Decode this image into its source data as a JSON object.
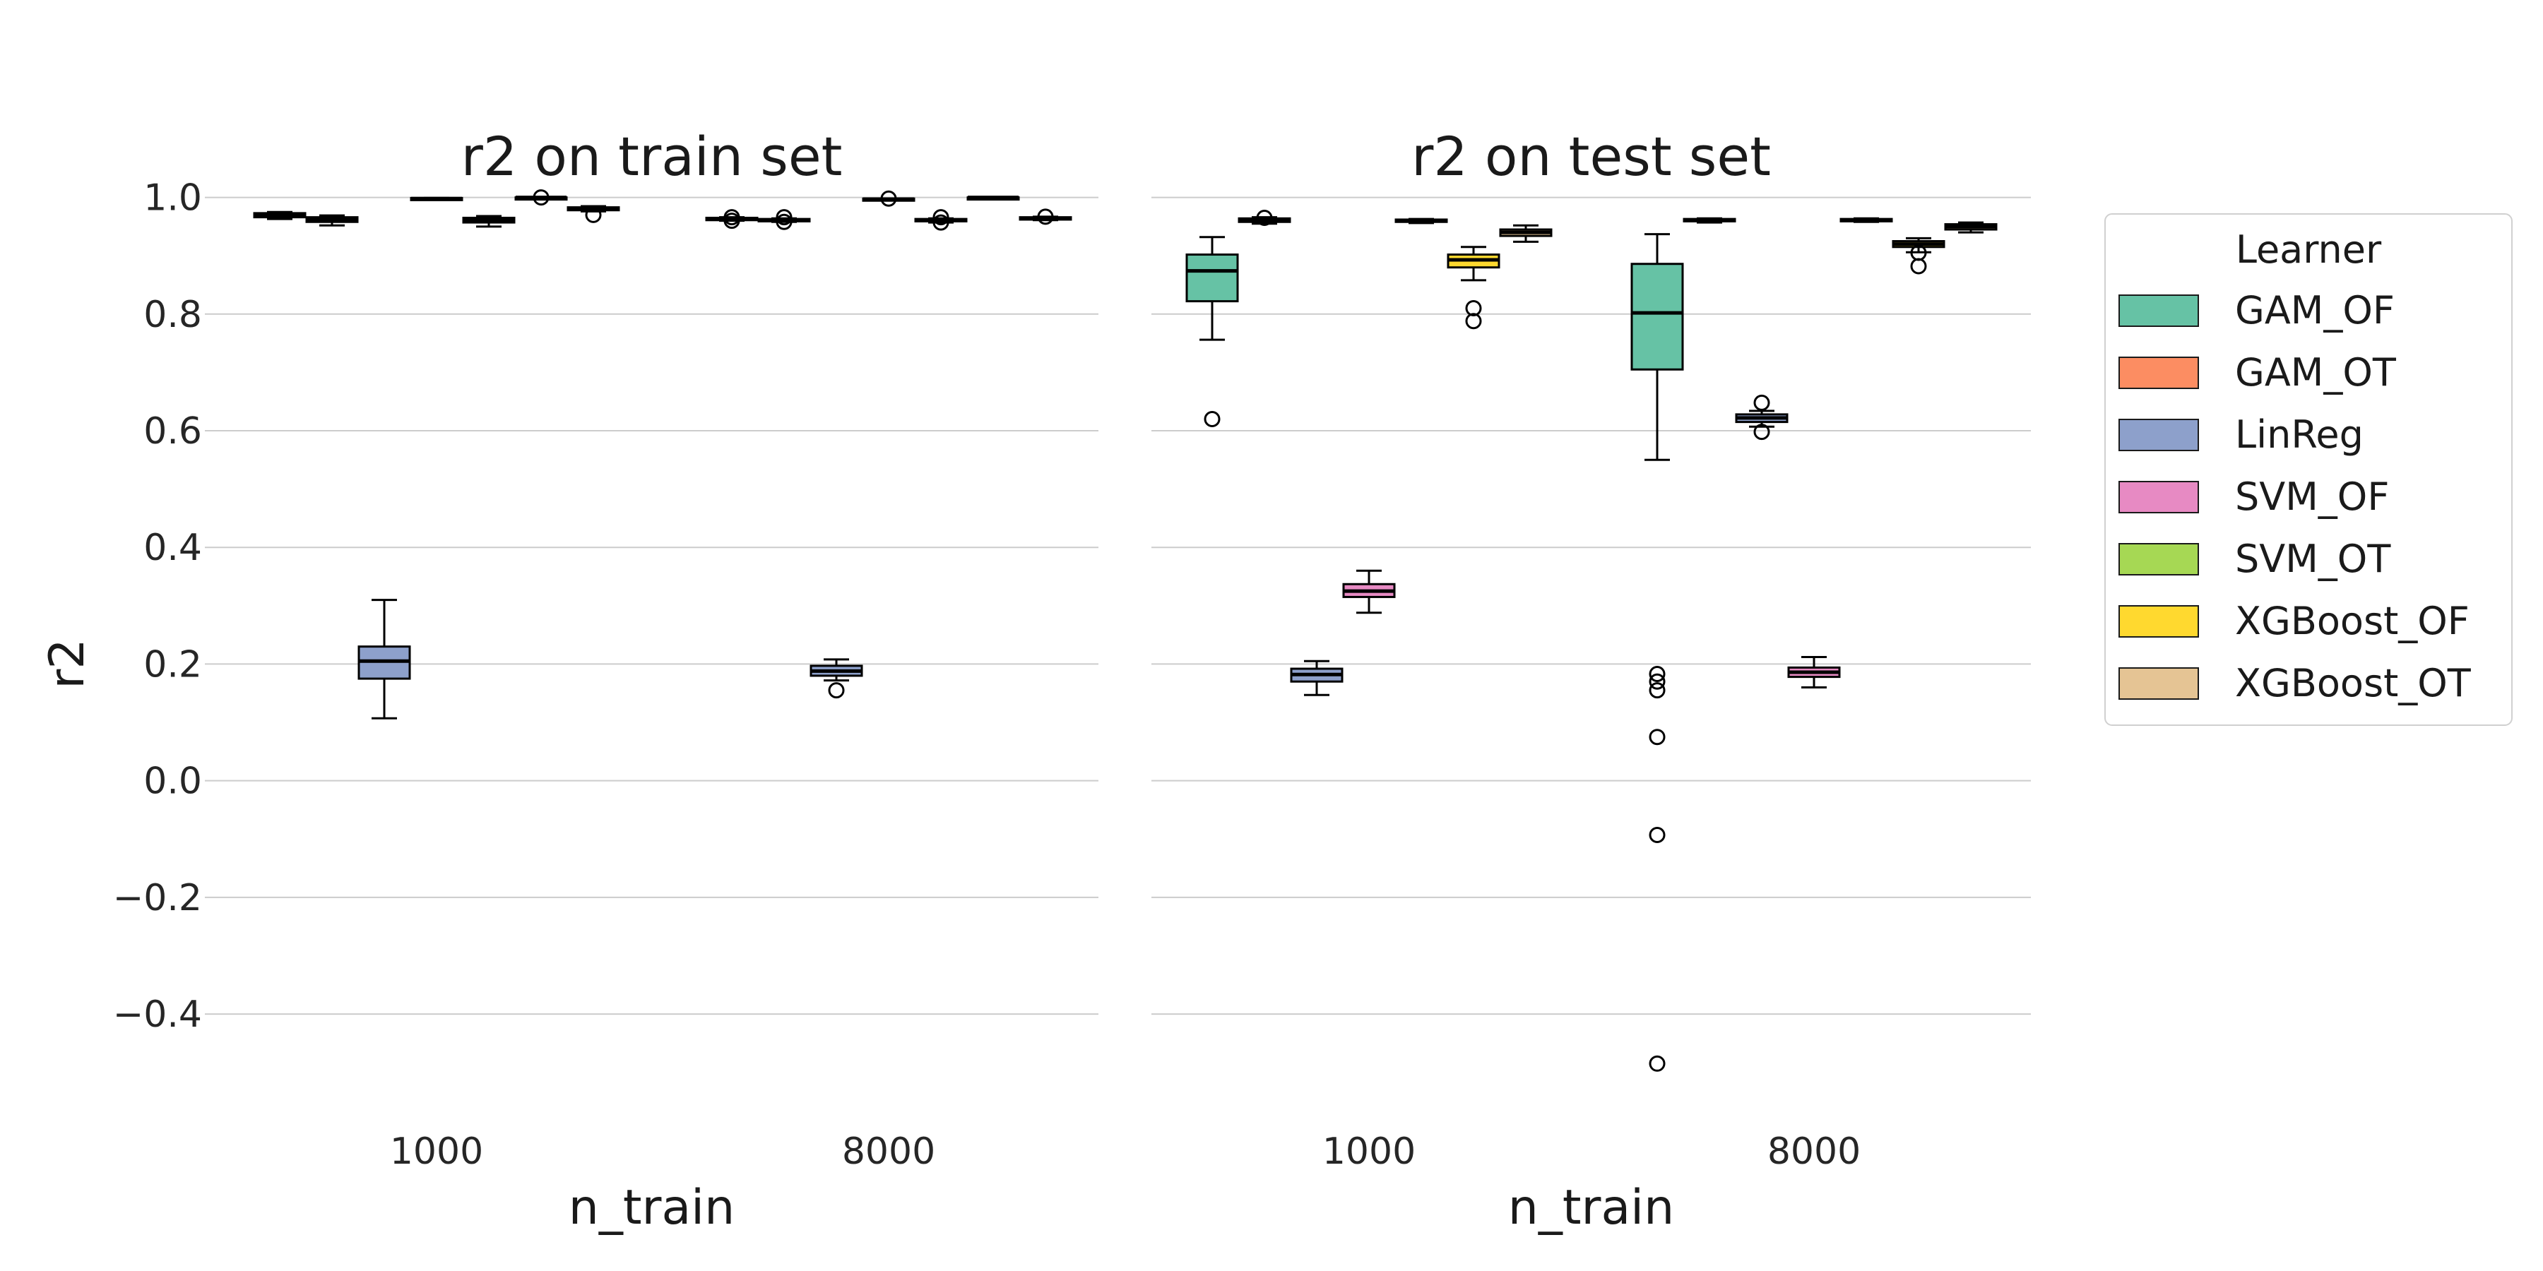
{
  "chart_data": [
    {
      "type": "box",
      "title": "r2 on train set",
      "xlabel": "n_train",
      "ylabel": "r2",
      "categories": [
        "1000",
        "8000"
      ],
      "ylim": [
        -0.55,
        1.06
      ],
      "yticks": [
        -0.4,
        -0.2,
        0.0,
        0.2,
        0.4,
        0.6,
        0.8,
        1.0
      ],
      "grid": true,
      "boxes": [
        {
          "category": "1000",
          "learner": "GAM_OF",
          "q1": 0.966,
          "median": 0.97,
          "q3": 0.973,
          "whisker_low": 0.963,
          "whisker_high": 0.975,
          "outliers": []
        },
        {
          "category": "1000",
          "learner": "GAM_OT",
          "q1": 0.958,
          "median": 0.962,
          "q3": 0.966,
          "whisker_low": 0.952,
          "whisker_high": 0.969,
          "outliers": []
        },
        {
          "category": "1000",
          "learner": "LinReg",
          "q1": 0.175,
          "median": 0.205,
          "q3": 0.23,
          "whisker_low": 0.107,
          "whisker_high": 0.31,
          "outliers": []
        },
        {
          "category": "1000",
          "learner": "SVM_OF",
          "q1": 0.997,
          "median": 0.998,
          "q3": 0.999,
          "whisker_low": 0.996,
          "whisker_high": 0.999,
          "outliers": []
        },
        {
          "category": "1000",
          "learner": "SVM_OT",
          "q1": 0.957,
          "median": 0.961,
          "q3": 0.965,
          "whisker_low": 0.95,
          "whisker_high": 0.968,
          "outliers": []
        },
        {
          "category": "1000",
          "learner": "XGBoost_OF",
          "q1": 0.999,
          "median": 1.0,
          "q3": 1.0,
          "whisker_low": 0.998,
          "whisker_high": 1.0,
          "outliers": [
            1.0
          ]
        },
        {
          "category": "1000",
          "learner": "XGBoost_OT",
          "q1": 0.978,
          "median": 0.98,
          "q3": 0.983,
          "whisker_low": 0.976,
          "whisker_high": 0.985,
          "outliers": [
            0.97
          ]
        },
        {
          "category": "8000",
          "learner": "GAM_OF",
          "q1": 0.961,
          "median": 0.963,
          "q3": 0.965,
          "whisker_low": 0.96,
          "whisker_high": 0.966,
          "outliers": [
            0.966,
            0.96
          ]
        },
        {
          "category": "8000",
          "learner": "GAM_OT",
          "q1": 0.959,
          "median": 0.961,
          "q3": 0.963,
          "whisker_low": 0.958,
          "whisker_high": 0.964,
          "outliers": [
            0.966,
            0.958
          ]
        },
        {
          "category": "8000",
          "learner": "LinReg",
          "q1": 0.18,
          "median": 0.188,
          "q3": 0.197,
          "whisker_low": 0.172,
          "whisker_high": 0.208,
          "outliers": [
            0.155
          ]
        },
        {
          "category": "8000",
          "learner": "SVM_OF",
          "q1": 0.996,
          "median": 0.997,
          "q3": 0.998,
          "whisker_low": 0.995,
          "whisker_high": 0.998,
          "outliers": [
            0.998
          ]
        },
        {
          "category": "8000",
          "learner": "SVM_OT",
          "q1": 0.959,
          "median": 0.961,
          "q3": 0.963,
          "whisker_low": 0.957,
          "whisker_high": 0.964,
          "outliers": [
            0.966,
            0.957
          ]
        },
        {
          "category": "8000",
          "learner": "XGBoost_OF",
          "q1": 0.999,
          "median": 1.0,
          "q3": 1.0,
          "whisker_low": 0.999,
          "whisker_high": 1.0,
          "outliers": []
        },
        {
          "category": "8000",
          "learner": "XGBoost_OT",
          "q1": 0.962,
          "median": 0.964,
          "q3": 0.966,
          "whisker_low": 0.961,
          "whisker_high": 0.967,
          "outliers": [
            0.967
          ]
        }
      ]
    },
    {
      "type": "box",
      "title": "r2 on test set",
      "xlabel": "n_train",
      "ylabel": "",
      "categories": [
        "1000",
        "8000"
      ],
      "ylim": [
        -0.55,
        1.06
      ],
      "yticks": [
        -0.4,
        -0.2,
        0.0,
        0.2,
        0.4,
        0.6,
        0.8,
        1.0
      ],
      "grid": true,
      "boxes": [
        {
          "category": "1000",
          "learner": "GAM_OF",
          "q1": 0.822,
          "median": 0.874,
          "q3": 0.902,
          "whisker_low": 0.756,
          "whisker_high": 0.932,
          "outliers": [
            0.62
          ]
        },
        {
          "category": "1000",
          "learner": "GAM_OT",
          "q1": 0.958,
          "median": 0.961,
          "q3": 0.964,
          "whisker_low": 0.955,
          "whisker_high": 0.966,
          "outliers": [
            0.965
          ]
        },
        {
          "category": "1000",
          "learner": "LinReg",
          "q1": 0.17,
          "median": 0.182,
          "q3": 0.192,
          "whisker_low": 0.147,
          "whisker_high": 0.205,
          "outliers": []
        },
        {
          "category": "1000",
          "learner": "SVM_OF",
          "q1": 0.315,
          "median": 0.325,
          "q3": 0.337,
          "whisker_low": 0.288,
          "whisker_high": 0.36,
          "outliers": []
        },
        {
          "category": "1000",
          "learner": "SVM_OT",
          "q1": 0.958,
          "median": 0.96,
          "q3": 0.962,
          "whisker_low": 0.956,
          "whisker_high": 0.963,
          "outliers": []
        },
        {
          "category": "1000",
          "learner": "XGBoost_OF",
          "q1": 0.88,
          "median": 0.893,
          "q3": 0.902,
          "whisker_low": 0.858,
          "whisker_high": 0.915,
          "outliers": [
            0.81,
            0.788
          ]
        },
        {
          "category": "1000",
          "learner": "XGBoost_OT",
          "q1": 0.934,
          "median": 0.94,
          "q3": 0.945,
          "whisker_low": 0.924,
          "whisker_high": 0.952,
          "outliers": []
        },
        {
          "category": "8000",
          "learner": "GAM_OF",
          "q1": 0.705,
          "median": 0.802,
          "q3": 0.886,
          "whisker_low": 0.55,
          "whisker_high": 0.937,
          "outliers": [
            0.183,
            0.17,
            0.155,
            0.075,
            -0.093,
            -0.485
          ]
        },
        {
          "category": "8000",
          "learner": "GAM_OT",
          "q1": 0.959,
          "median": 0.961,
          "q3": 0.963,
          "whisker_low": 0.957,
          "whisker_high": 0.964,
          "outliers": []
        },
        {
          "category": "8000",
          "learner": "LinReg",
          "q1": 0.615,
          "median": 0.622,
          "q3": 0.628,
          "whisker_low": 0.607,
          "whisker_high": 0.634,
          "outliers": [
            0.648,
            0.598
          ]
        },
        {
          "category": "8000",
          "learner": "SVM_OF",
          "q1": 0.178,
          "median": 0.186,
          "q3": 0.194,
          "whisker_low": 0.16,
          "whisker_high": 0.212,
          "outliers": []
        },
        {
          "category": "8000",
          "learner": "SVM_OT",
          "q1": 0.959,
          "median": 0.961,
          "q3": 0.963,
          "whisker_low": 0.958,
          "whisker_high": 0.964,
          "outliers": []
        },
        {
          "category": "8000",
          "learner": "XGBoost_OF",
          "q1": 0.915,
          "median": 0.92,
          "q3": 0.925,
          "whisker_low": 0.906,
          "whisker_high": 0.93,
          "outliers": [
            0.905,
            0.882
          ]
        },
        {
          "category": "8000",
          "learner": "XGBoost_OT",
          "q1": 0.945,
          "median": 0.95,
          "q3": 0.954,
          "whisker_low": 0.94,
          "whisker_high": 0.957,
          "outliers": []
        }
      ]
    }
  ],
  "legend": {
    "title": "Learner",
    "placement": "outside-right",
    "entries": [
      {
        "name": "GAM_OF",
        "color": "#66c2a5"
      },
      {
        "name": "GAM_OT",
        "color": "#fc8d62"
      },
      {
        "name": "LinReg",
        "color": "#8da0cb"
      },
      {
        "name": "SVM_OF",
        "color": "#e78ac3"
      },
      {
        "name": "SVM_OT",
        "color": "#a6d854"
      },
      {
        "name": "XGBoost_OF",
        "color": "#ffd92f"
      },
      {
        "name": "XGBoost_OT",
        "color": "#e5c494"
      }
    ]
  }
}
